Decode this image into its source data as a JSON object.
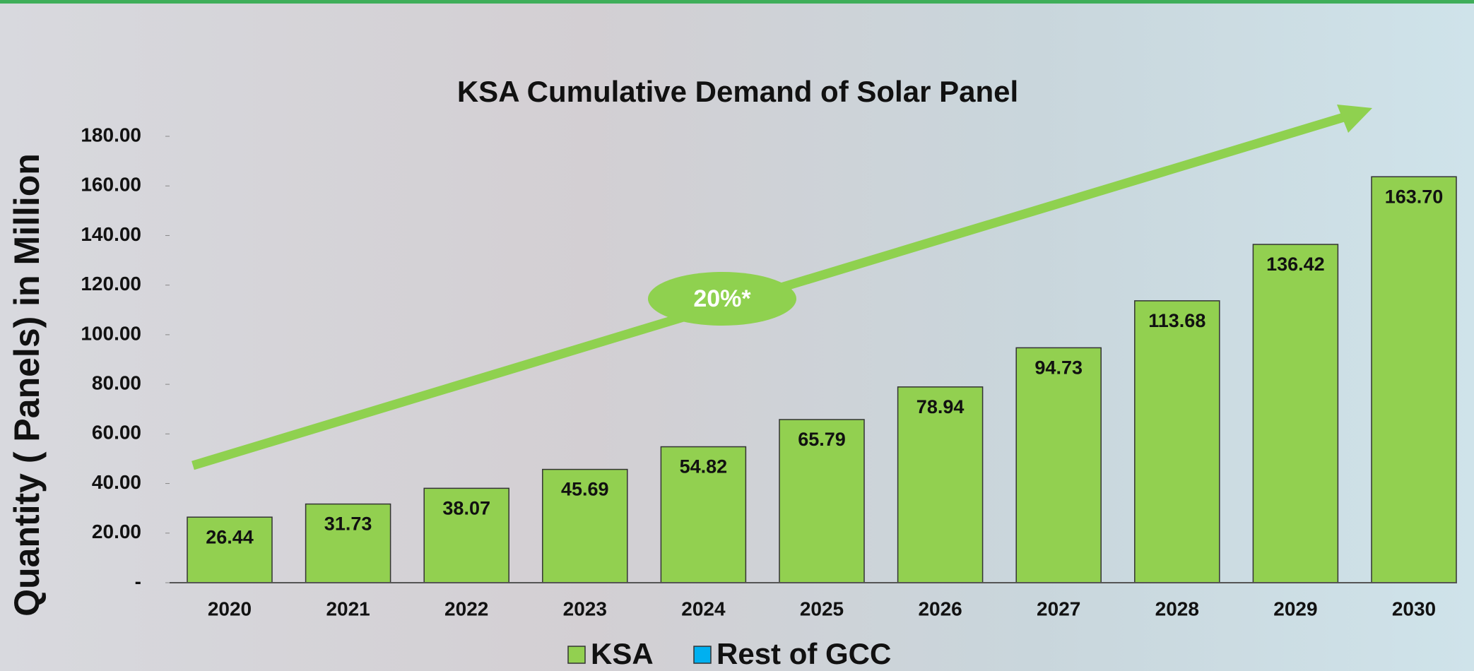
{
  "chart_data": {
    "type": "bar",
    "title": "KSA Cumulative Demand of Solar Panel",
    "y_label": "Quantity ( Panels) in Million",
    "annotation": "20%*",
    "categories": [
      "2020",
      "2021",
      "2022",
      "2023",
      "2024",
      "2025",
      "2026",
      "2027",
      "2028",
      "2029",
      "2030"
    ],
    "series": [
      {
        "name": "KSA",
        "color": "#92d050",
        "values": [
          26.44,
          31.73,
          38.07,
          45.69,
          54.82,
          65.79,
          78.94,
          94.73,
          113.68,
          136.42,
          163.7
        ],
        "value_labels": [
          "26.44",
          "31.73",
          "38.07",
          "45.69",
          "54.82",
          "65.79",
          "78.94",
          "94.73",
          "113.68",
          "136.42",
          "163.70"
        ]
      },
      {
        "name": "Rest of GCC",
        "color": "#00b0f0",
        "values": [
          null,
          null,
          null,
          null,
          null,
          null,
          null,
          null,
          null,
          null,
          null
        ]
      }
    ],
    "ylim": [
      0,
      180
    ],
    "yticks": [
      {
        "value": 0,
        "label": "-"
      },
      {
        "value": 20,
        "label": "20.00"
      },
      {
        "value": 40,
        "label": "40.00"
      },
      {
        "value": 60,
        "label": "60.00"
      },
      {
        "value": 80,
        "label": "80.00"
      },
      {
        "value": 100,
        "label": "100.00"
      },
      {
        "value": 120,
        "label": "120.00"
      },
      {
        "value": 140,
        "label": "140.00"
      },
      {
        "value": 160,
        "label": "160.00"
      },
      {
        "value": 180,
        "label": "180.00"
      }
    ],
    "legend": "bottom"
  }
}
